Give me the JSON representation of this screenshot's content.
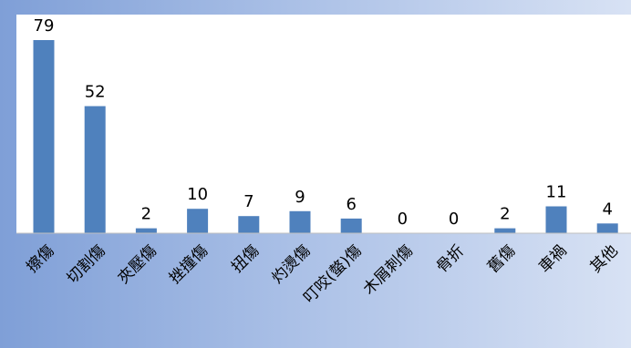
{
  "chart_data": {
    "type": "bar",
    "categories": [
      "擦傷",
      "切割傷",
      "夾壓傷",
      "挫撞傷",
      "扭傷",
      "灼燙傷",
      "叮咬(螫)傷",
      "木屑刺傷",
      "骨折",
      "舊傷",
      "車禍",
      "其他"
    ],
    "values": [
      79,
      52,
      2,
      10,
      7,
      9,
      6,
      0,
      0,
      2,
      11,
      4
    ],
    "ylim": [
      0,
      90
    ],
    "grid": false,
    "legend": "none",
    "bar_color": "#4f81bd"
  }
}
